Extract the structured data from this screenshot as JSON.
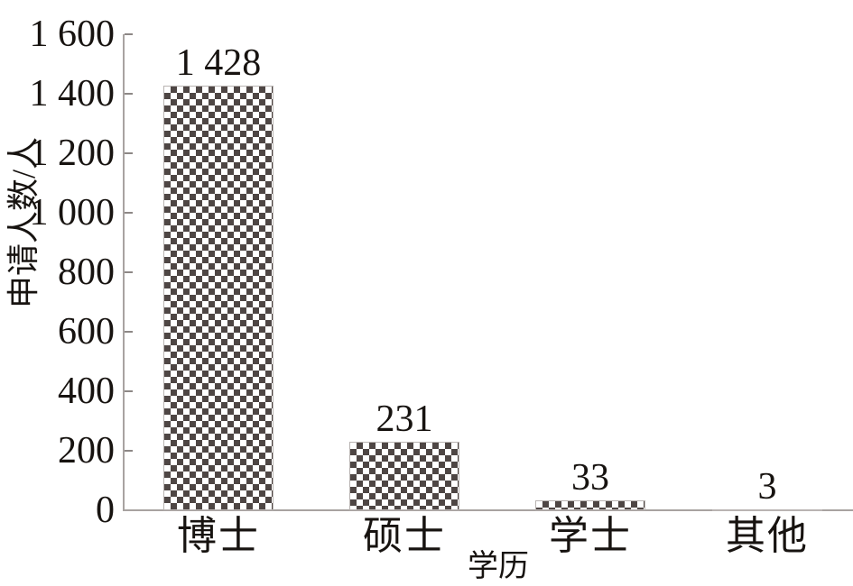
{
  "chart_data": {
    "type": "bar",
    "title": "",
    "categories": [
      "博士",
      "硕士",
      "学士",
      "其他"
    ],
    "values": [
      1428,
      231,
      33,
      3
    ],
    "value_labels": [
      "1 428",
      "231",
      "33",
      "3"
    ],
    "xlabel": "学历",
    "ylabel": "申请人数/人",
    "ylim": [
      0,
      1600
    ],
    "ytick_interval": 200,
    "yticks": [
      "0",
      "200",
      "400",
      "600",
      "800",
      "1 000",
      "1 200",
      "1 400",
      "1 600"
    ],
    "grid": false,
    "legend": "none",
    "bar_style": "checkerboard-pattern",
    "colors": {
      "pattern_dark": "#4e4644",
      "pattern_light": "#ffffff",
      "bar_border": "#b9b4b2",
      "axis": "#a8a3a1",
      "tick": "#8d8886",
      "text": "#171310"
    }
  }
}
